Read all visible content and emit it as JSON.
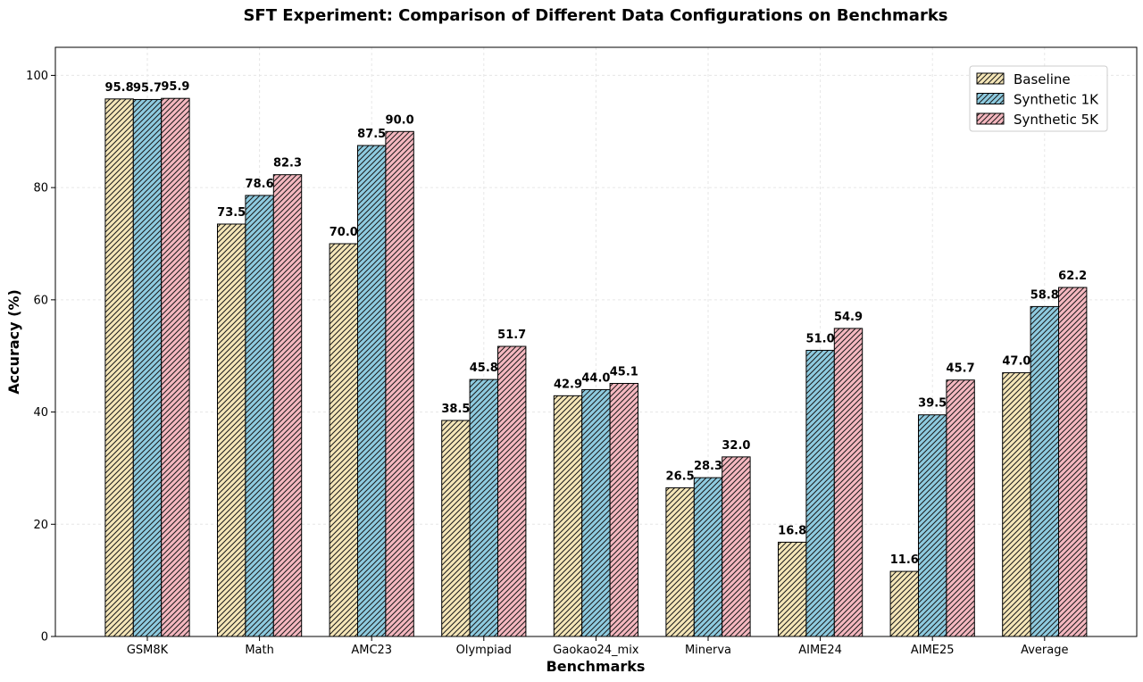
{
  "chart_data": {
    "type": "bar",
    "title": "SFT Experiment: Comparison of Different Data Configurations on Benchmarks",
    "xlabel": "Benchmarks",
    "ylabel": "Accuracy (%)",
    "ylim": [
      0,
      105
    ],
    "yticks": [
      0,
      20,
      40,
      60,
      80,
      100
    ],
    "grid": true,
    "legend_position": "top-right",
    "categories": [
      "GSM8K",
      "Math",
      "AMC23",
      "Olympiad",
      "Gaokao24_mix",
      "Minerva",
      "AIME24",
      "AIME25",
      "Average"
    ],
    "series": [
      {
        "name": "Baseline",
        "color": "#f5e6b8",
        "values": [
          95.8,
          73.5,
          70.0,
          38.5,
          42.9,
          26.5,
          16.8,
          11.6,
          47.0
        ]
      },
      {
        "name": "Synthetic 1K",
        "color": "#8ecbe0",
        "values": [
          95.7,
          78.6,
          87.5,
          45.8,
          44.0,
          28.3,
          51.0,
          39.5,
          58.8
        ]
      },
      {
        "name": "Synthetic 5K",
        "color": "#f5b8c0",
        "values": [
          95.9,
          82.3,
          90.0,
          51.7,
          45.1,
          32.0,
          54.9,
          45.7,
          62.2
        ]
      }
    ]
  }
}
